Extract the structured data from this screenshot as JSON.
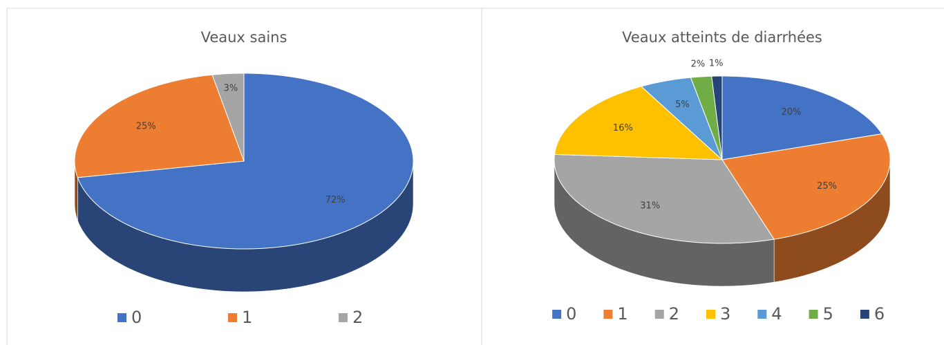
{
  "chart_data": [
    {
      "type": "pie",
      "title": "Veaux sains",
      "categories": [
        "0",
        "1",
        "2"
      ],
      "values": [
        72,
        25,
        3
      ],
      "value_labels": [
        "72%",
        "25%",
        "3%"
      ],
      "colors": [
        "#4472c4",
        "#ed7d31",
        "#a5a5a5"
      ],
      "legend": "bottom"
    },
    {
      "type": "pie",
      "title": "Veaux atteints de diarrhées",
      "categories": [
        "0",
        "1",
        "2",
        "3",
        "4",
        "5",
        "6"
      ],
      "values": [
        20,
        25,
        31,
        16,
        5,
        2,
        1
      ],
      "value_labels": [
        "20%",
        "25%",
        "31%",
        "16%",
        "5%",
        "2%",
        "1%"
      ],
      "colors": [
        "#4472c4",
        "#ed7d31",
        "#a5a5a5",
        "#ffc000",
        "#5b9bd5",
        "#70ad47",
        "#264478"
      ],
      "legend": "bottom"
    }
  ]
}
